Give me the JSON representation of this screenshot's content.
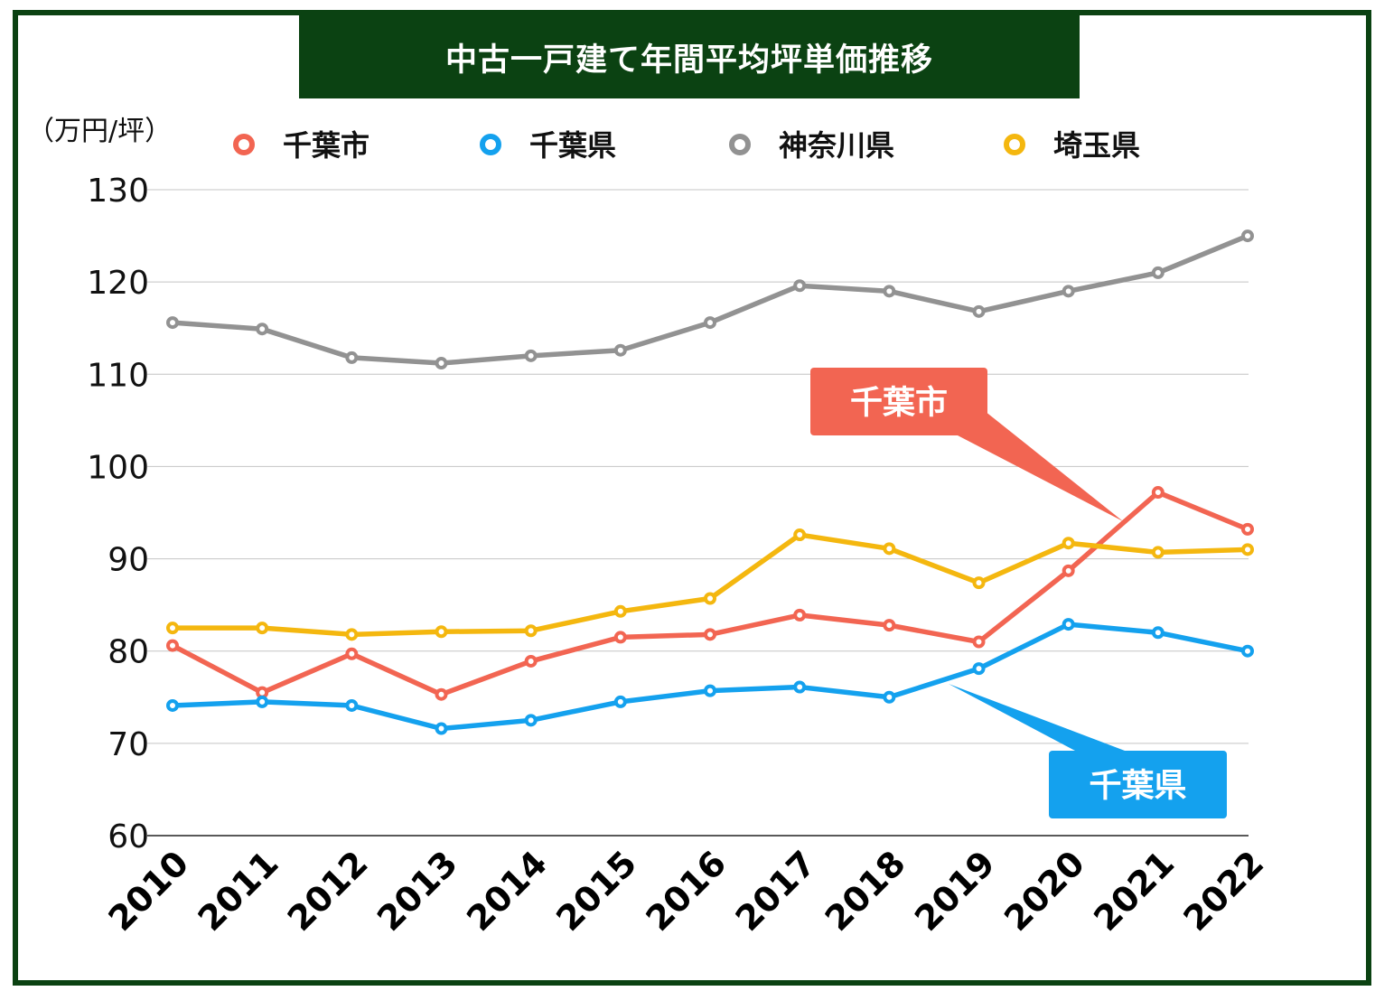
{
  "chart_data": {
    "type": "line",
    "title": "中古一戸建て年間平均坪単価推移",
    "unit_label": "（万円/坪）",
    "ylim": [
      60,
      130
    ],
    "y_ticks": [
      60,
      70,
      80,
      90,
      100,
      110,
      120,
      130
    ],
    "categories": [
      "2010",
      "2011",
      "2012",
      "2013",
      "2014",
      "2015",
      "2016",
      "2017",
      "2018",
      "2019",
      "2020",
      "2021",
      "2022"
    ],
    "grid": "horizontal",
    "legend_position": "top",
    "series": [
      {
        "name": "千葉市",
        "color": "#f26552",
        "values": [
          80.6,
          75.5,
          79.7,
          75.3,
          78.9,
          81.5,
          81.8,
          83.9,
          82.8,
          81.0,
          88.7,
          97.2,
          93.2
        ]
      },
      {
        "name": "千葉県",
        "color": "#14a1ee",
        "values": [
          74.1,
          74.5,
          74.1,
          71.6,
          72.5,
          74.5,
          75.7,
          76.1,
          75.0,
          78.1,
          82.9,
          82.0,
          80.0
        ]
      },
      {
        "name": "神奈川県",
        "color": "#929292",
        "values": [
          115.6,
          114.9,
          111.8,
          111.2,
          112.0,
          112.6,
          115.6,
          119.6,
          119.0,
          116.8,
          119.0,
          121.0,
          125.0
        ]
      },
      {
        "name": "埼玉県",
        "color": "#f4b70f",
        "values": [
          82.5,
          82.5,
          81.8,
          82.1,
          82.2,
          84.3,
          85.7,
          92.6,
          91.1,
          87.4,
          91.7,
          90.7,
          91.0
        ]
      }
    ],
    "annotations": [
      {
        "text": "千葉市",
        "series": "千葉市",
        "color": "#f26552"
      },
      {
        "text": "千葉県",
        "series": "千葉県",
        "color": "#14a1ee"
      }
    ]
  }
}
